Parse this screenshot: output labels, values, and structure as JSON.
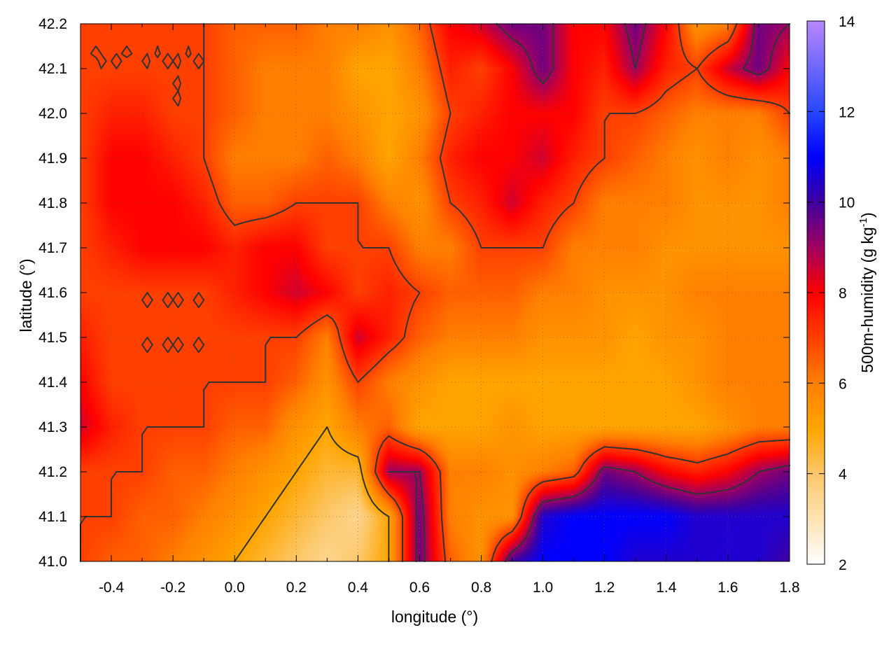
{
  "chart_data": {
    "type": "heatmap",
    "xlabel": "longitude (°)",
    "ylabel": "latitude (°)",
    "colorbar_label": {
      "main": "500m-humidity (g kg",
      "sup": "-1",
      "tail": ")"
    },
    "xlim": [
      -0.5,
      1.8
    ],
    "ylim": [
      41.0,
      42.2
    ],
    "zlim": [
      2,
      14
    ],
    "x_ticks": [
      "-0.4",
      "-0.2",
      "0.0",
      "0.2",
      "0.4",
      "0.6",
      "0.8",
      "1.0",
      "1.2",
      "1.4",
      "1.6",
      "1.8"
    ],
    "x_tick_values": [
      -0.4,
      -0.2,
      0.0,
      0.2,
      0.4,
      0.6,
      0.8,
      1.0,
      1.2,
      1.4,
      1.6,
      1.8
    ],
    "y_ticks": [
      "41.0",
      "41.1",
      "41.2",
      "41.3",
      "41.4",
      "41.5",
      "41.6",
      "41.7",
      "41.8",
      "41.9",
      "42.0",
      "42.1",
      "42.2"
    ],
    "y_tick_values": [
      41.0,
      41.1,
      41.2,
      41.3,
      41.4,
      41.5,
      41.6,
      41.7,
      41.8,
      41.9,
      42.0,
      42.1,
      42.2
    ],
    "cb_ticks": [
      "2",
      "4",
      "6",
      "8",
      "10",
      "12",
      "14"
    ],
    "cb_tick_values": [
      2,
      4,
      6,
      8,
      10,
      12,
      14
    ],
    "grid": true,
    "contour_levels": [
      5,
      7,
      9
    ],
    "palette": [
      {
        "z": 2,
        "color": "#ffffff"
      },
      {
        "z": 4,
        "color": "#fcc86a"
      },
      {
        "z": 5,
        "color": "#ffa500"
      },
      {
        "z": 6,
        "color": "#ff8000"
      },
      {
        "z": 7,
        "color": "#ff4000"
      },
      {
        "z": 8,
        "color": "#ff0000"
      },
      {
        "z": 9,
        "color": "#a00060"
      },
      {
        "z": 10,
        "color": "#4000a0"
      },
      {
        "z": 11,
        "color": "#0000ff"
      },
      {
        "z": 12,
        "color": "#2848ff"
      },
      {
        "z": 14,
        "color": "#b888ff"
      }
    ],
    "grid_lon": [
      -0.5,
      -0.4,
      -0.3,
      -0.2,
      -0.1,
      0.0,
      0.1,
      0.2,
      0.3,
      0.4,
      0.5,
      0.6,
      0.7,
      0.8,
      0.9,
      1.0,
      1.1,
      1.2,
      1.3,
      1.4,
      1.5,
      1.6,
      1.7,
      1.8
    ],
    "grid_lat": [
      42.2,
      42.1,
      42.0,
      41.9,
      41.8,
      41.7,
      41.6,
      41.5,
      41.4,
      41.3,
      41.2,
      41.1,
      41.0
    ],
    "z": [
      [
        7,
        7,
        7,
        7,
        7,
        6.5,
        6.5,
        6.5,
        6,
        6,
        5.5,
        6.5,
        8,
        8.5,
        9.5,
        9.5,
        8,
        8,
        9.5,
        8,
        5.5,
        6,
        9.5,
        9
      ],
      [
        7,
        7,
        7,
        7,
        7,
        6.5,
        6,
        6,
        6,
        5,
        5,
        6,
        7.5,
        7,
        8,
        9.5,
        8,
        7.5,
        9,
        7.5,
        7,
        8.5,
        9.5,
        8
      ],
      [
        7,
        7.5,
        7.5,
        7,
        7,
        6.5,
        6,
        6,
        6,
        5.5,
        5,
        5.5,
        7,
        7.5,
        8,
        8,
        8,
        7,
        7,
        6.5,
        6,
        6,
        6,
        7
      ],
      [
        7,
        8,
        8,
        7.5,
        7,
        6,
        6,
        6,
        6.5,
        6,
        5,
        6,
        7.5,
        8,
        8,
        8.5,
        7.5,
        7,
        6.5,
        6,
        5.5,
        6,
        5.5,
        6
      ],
      [
        7,
        8,
        8,
        8,
        7.5,
        6.5,
        6.5,
        7,
        7,
        7,
        6,
        5.5,
        7,
        7.5,
        8.5,
        7.5,
        7,
        6,
        6,
        6,
        5.5,
        5.5,
        5.5,
        6
      ],
      [
        7,
        7.5,
        8,
        8,
        8,
        7.5,
        8,
        8,
        7,
        7,
        7,
        6,
        6,
        7,
        7,
        7,
        6,
        6,
        6,
        5.5,
        5.5,
        5.5,
        5.5,
        5.5
      ],
      [
        7,
        7,
        7,
        7,
        7,
        7.5,
        8,
        8.5,
        8,
        7,
        7.5,
        7,
        6.5,
        6.5,
        6.5,
        6,
        6,
        5.5,
        5.5,
        5.5,
        6,
        6,
        6,
        6
      ],
      [
        7.5,
        7,
        7,
        7,
        7,
        7,
        7,
        7,
        6,
        8.5,
        7.5,
        6.5,
        6,
        6,
        6,
        5.5,
        5.5,
        5.5,
        5,
        5.5,
        5.5,
        6,
        6,
        6
      ],
      [
        8,
        7,
        7,
        7,
        7,
        7,
        7,
        6.5,
        5.5,
        7,
        6,
        5.5,
        5,
        5,
        5,
        5,
        5,
        5,
        5,
        5,
        5.5,
        6,
        6,
        6
      ],
      [
        8.5,
        7.5,
        7,
        7,
        7,
        6.5,
        6.5,
        5.5,
        5,
        6,
        6.5,
        5,
        5,
        5,
        5.5,
        5,
        5,
        5,
        5,
        5,
        5,
        5.5,
        6,
        6
      ],
      [
        7,
        7,
        7,
        6.5,
        6.5,
        6,
        5.5,
        5,
        4.5,
        4.5,
        9,
        9,
        6,
        6,
        5.5,
        6,
        6.5,
        9.5,
        9,
        8,
        7.5,
        8,
        9,
        9.5
      ],
      [
        7,
        7,
        6.5,
        6.5,
        6,
        5.5,
        5,
        4.5,
        4,
        3.5,
        5,
        9.5,
        6,
        5.5,
        5.5,
        10.5,
        11,
        11,
        11,
        11,
        10.5,
        10.5,
        10.5,
        10.5
      ],
      [
        7,
        6.5,
        6.5,
        6,
        5.5,
        5,
        4.5,
        4,
        3.5,
        4,
        5,
        9.5,
        6.5,
        5.5,
        10,
        11,
        11,
        11,
        10.5,
        10.5,
        10.5,
        10.5,
        10.5,
        10
      ]
    ]
  }
}
